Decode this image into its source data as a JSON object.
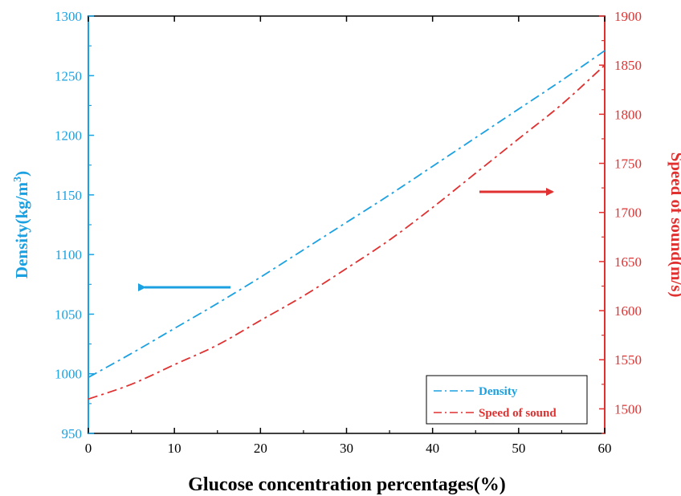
{
  "chart_data": {
    "type": "line",
    "xlabel": "Glucose concentration percentages(%)",
    "ylabel_left": "Density(kg/m",
    "ylabel_left_sup": "3",
    "ylabel_left_close": ")",
    "ylabel_right": "Speed of sound(m/s)",
    "xlim": [
      0,
      60
    ],
    "ylim_left": [
      950,
      1300
    ],
    "ylim_right": [
      1475,
      1900
    ],
    "x_ticks": [
      "0",
      "10",
      "20",
      "30",
      "40",
      "50",
      "60"
    ],
    "y_left_ticks": [
      "950",
      "1000",
      "1050",
      "1100",
      "1150",
      "1200",
      "1250",
      "1300"
    ],
    "y_right_ticks": [
      "1500",
      "1550",
      "1600",
      "1650",
      "1700",
      "1750",
      "1800",
      "1850",
      "1900"
    ],
    "grid": false,
    "legend_position": "bottom-right",
    "series": [
      {
        "name": "Density",
        "axis": "left",
        "color": "#1ba1e2",
        "style": "dash-dot",
        "x": [
          0,
          5,
          10,
          15,
          20,
          25,
          30,
          35,
          40,
          45,
          50,
          55,
          60
        ],
        "values": [
          997,
          1017,
          1038,
          1059,
          1081,
          1104,
          1127,
          1150,
          1174,
          1198,
          1222,
          1246,
          1271
        ]
      },
      {
        "name": "Speed of sound",
        "axis": "right",
        "color": "#e03030",
        "style": "dash-dot",
        "x": [
          0,
          5,
          10,
          15,
          20,
          25,
          30,
          35,
          40,
          45,
          50,
          55,
          60
        ],
        "values": [
          1510,
          1525,
          1545,
          1565,
          1590,
          1615,
          1643,
          1672,
          1705,
          1740,
          1775,
          1810,
          1850
        ]
      }
    ],
    "annotations": [
      {
        "type": "arrow",
        "direction": "left",
        "color": "#1ba1e2",
        "meaning": "density-axis-indicator"
      },
      {
        "type": "arrow",
        "direction": "right",
        "color": "#e03030",
        "meaning": "speed-axis-indicator"
      }
    ]
  }
}
